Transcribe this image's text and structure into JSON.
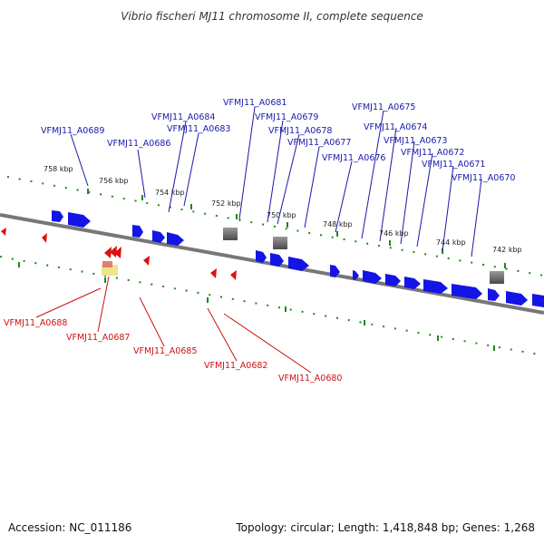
{
  "title": "Vibrio fischeri MJ11 chromosome II, complete sequence",
  "footer": {
    "accession": "Accession: NC_011186",
    "topology": "Topology: circular; Length: 1,418,848 bp; Genes: 1,268"
  },
  "colors": {
    "forward_gene": "#1414e6",
    "reverse_gene": "#e01010",
    "rna_gene": "#666666",
    "backbone": "#7f7f7f",
    "scale_ticks": "#1a8a1a"
  },
  "scale_labels": [
    "758 kbp",
    "756 kbp",
    "754 kbp",
    "752 kbp",
    "750 kbp",
    "748 kbp",
    "746 kbp",
    "744 kbp",
    "742 kbp"
  ],
  "forward_labels": [
    "VFMJ11_A0689",
    "VFMJ11_A0686",
    "VFMJ11_A0684",
    "VFMJ11_A0683",
    "VFMJ11_A0681",
    "VFMJ11_A0679",
    "VFMJ11_A0678",
    "VFMJ11_A0677",
    "VFMJ11_A0676",
    "VFMJ11_A0675",
    "VFMJ11_A0674",
    "VFMJ11_A0673",
    "VFMJ11_A0672",
    "VFMJ11_A0671",
    "VFMJ11_A0670"
  ],
  "reverse_labels": [
    "VFMJ11_A0688",
    "VFMJ11_A0687",
    "VFMJ11_A0685",
    "VFMJ11_A0682",
    "VFMJ11_A0680"
  ]
}
